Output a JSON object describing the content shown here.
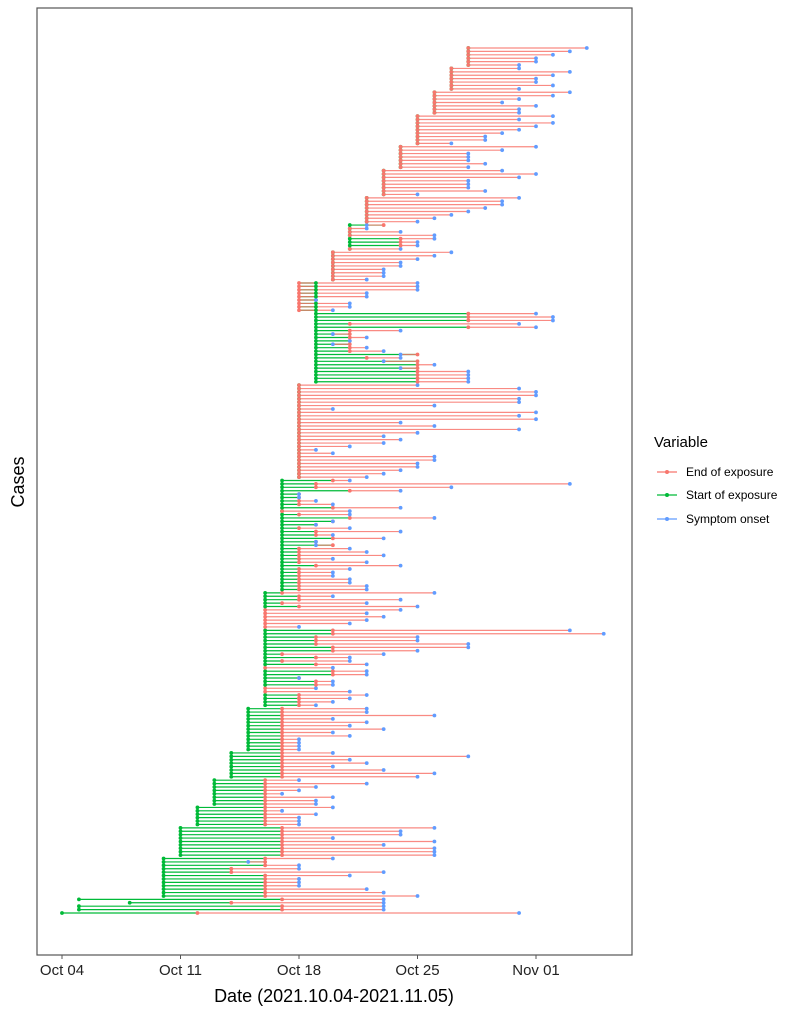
{
  "chart_data": {
    "type": "line",
    "subtype": "segment-timeline",
    "title": "",
    "xlabel": "Date (2021.10.04-2021.11.05)",
    "ylabel": "Cases",
    "x_origin_date": "2021-10-04",
    "x_unit": "days since Oct 04",
    "xlim": [
      -1.4,
      33.8
    ],
    "x_ticks": [
      {
        "value": 0,
        "label": "Oct 04"
      },
      {
        "value": 7,
        "label": "Oct 11"
      },
      {
        "value": 14,
        "label": "Oct 18"
      },
      {
        "value": 21,
        "label": "Oct 25"
      },
      {
        "value": 28,
        "label": "Nov 01"
      }
    ],
    "grid": false,
    "legend": {
      "title": "Variable",
      "position": "right",
      "entries": [
        {
          "key": "end",
          "label": "End of exposure",
          "color": "#F8766D"
        },
        {
          "key": "start",
          "label": "Start of exposure",
          "color": "#00BA38"
        },
        {
          "key": "onset",
          "label": "Symptom onset",
          "color": "#619CFF"
        }
      ]
    },
    "case_format": "[start_of_exposure_day, end_of_exposure_day, symptom_onset_day] (null = no start recorded), ordered bottom to top",
    "cases": [
      [
        0,
        8,
        27
      ],
      [
        1,
        13,
        19
      ],
      [
        1,
        13,
        19
      ],
      [
        4,
        10,
        19
      ],
      [
        1,
        13,
        19
      ],
      [
        6,
        12,
        21
      ],
      [
        6,
        12,
        19
      ],
      [
        6,
        12,
        18
      ],
      [
        6,
        12,
        14
      ],
      [
        6,
        12,
        14
      ],
      [
        6,
        12,
        14
      ],
      [
        6,
        12,
        17
      ],
      [
        6,
        10,
        19
      ],
      [
        6,
        10,
        14
      ],
      [
        6,
        12,
        14
      ],
      [
        6,
        12,
        11
      ],
      [
        6,
        12,
        16
      ],
      [
        7,
        13,
        22
      ],
      [
        7,
        13,
        22
      ],
      [
        7,
        13,
        22
      ],
      [
        7,
        13,
        19
      ],
      [
        7,
        13,
        22
      ],
      [
        7,
        13,
        16
      ],
      [
        7,
        13,
        20
      ],
      [
        7,
        13,
        20
      ],
      [
        7,
        13,
        22
      ],
      [
        8,
        12,
        14
      ],
      [
        8,
        12,
        14
      ],
      [
        8,
        12,
        14
      ],
      [
        8,
        12,
        15
      ],
      [
        8,
        12,
        13
      ],
      [
        8,
        12,
        16
      ],
      [
        9,
        12,
        15
      ],
      [
        9,
        12,
        15
      ],
      [
        9,
        12,
        16
      ],
      [
        9,
        12,
        13
      ],
      [
        9,
        12,
        14
      ],
      [
        9,
        12,
        15
      ],
      [
        9,
        12,
        18
      ],
      [
        9,
        12,
        14
      ],
      [
        10,
        13,
        21
      ],
      [
        10,
        13,
        22
      ],
      [
        10,
        13,
        19
      ],
      [
        10,
        13,
        16
      ],
      [
        10,
        13,
        18
      ],
      [
        10,
        13,
        17
      ],
      [
        10,
        13,
        24
      ],
      [
        10,
        13,
        16
      ],
      [
        11,
        13,
        14
      ],
      [
        11,
        13,
        14
      ],
      [
        11,
        13,
        14
      ],
      [
        11,
        13,
        14
      ],
      [
        11,
        13,
        17
      ],
      [
        11,
        13,
        16
      ],
      [
        11,
        13,
        19
      ],
      [
        11,
        13,
        17
      ],
      [
        11,
        13,
        18
      ],
      [
        11,
        13,
        16
      ],
      [
        11,
        13,
        22
      ],
      [
        11,
        13,
        18
      ],
      [
        11,
        13,
        18
      ],
      [
        12,
        14,
        15
      ],
      [
        12,
        14,
        16
      ],
      [
        12,
        14,
        17
      ],
      [
        12,
        14,
        18
      ],
      [
        null,
        12,
        17
      ],
      [
        null,
        12,
        15
      ],
      [
        12,
        15,
        16
      ],
      [
        12,
        15,
        16
      ],
      [
        12,
        14,
        14
      ],
      [
        12,
        16,
        18
      ],
      [
        12,
        16,
        18
      ],
      [
        null,
        12,
        16
      ],
      [
        12,
        15,
        18
      ],
      [
        12,
        13,
        17
      ],
      [
        12,
        15,
        17
      ],
      [
        12,
        13,
        19
      ],
      [
        12,
        16,
        21
      ],
      [
        12,
        16,
        24
      ],
      [
        12,
        15,
        24
      ],
      [
        12,
        15,
        21
      ],
      [
        12,
        15,
        21
      ],
      [
        12,
        16,
        32
      ],
      [
        12,
        16,
        30
      ],
      [
        null,
        12,
        14
      ],
      [
        null,
        12,
        17
      ],
      [
        null,
        12,
        18
      ],
      [
        null,
        12,
        19
      ],
      [
        null,
        12,
        18
      ],
      [
        null,
        12,
        20
      ],
      [
        12,
        14,
        21
      ],
      [
        12,
        13,
        18
      ],
      [
        12,
        14,
        20
      ],
      [
        12,
        14,
        16
      ],
      [
        12,
        13,
        22
      ],
      [
        13,
        14,
        18
      ],
      [
        13,
        14,
        18
      ],
      [
        13,
        14,
        17
      ],
      [
        13,
        14,
        17
      ],
      [
        13,
        14,
        16
      ],
      [
        13,
        14,
        16
      ],
      [
        13,
        14,
        17
      ],
      [
        13,
        15,
        20
      ],
      [
        13,
        14,
        18
      ],
      [
        13,
        14,
        16
      ],
      [
        13,
        14,
        19
      ],
      [
        13,
        14,
        18
      ],
      [
        13,
        14,
        17
      ],
      [
        13,
        16,
        15
      ],
      [
        13,
        15,
        15
      ],
      [
        13,
        16,
        19
      ],
      [
        13,
        15,
        16
      ],
      [
        13,
        15,
        20
      ],
      [
        13,
        14,
        17
      ],
      [
        13,
        15,
        15
      ],
      [
        13,
        16,
        16
      ],
      [
        13,
        17,
        22
      ],
      [
        13,
        14,
        17
      ],
      [
        13,
        13,
        17
      ],
      [
        13,
        16,
        20
      ],
      [
        13,
        14,
        16
      ],
      [
        13,
        14,
        15
      ],
      [
        13,
        14,
        14
      ],
      [
        13,
        14,
        14
      ],
      [
        13,
        17,
        20
      ],
      [
        13,
        15,
        23
      ],
      [
        13,
        15,
        30
      ],
      [
        13,
        16,
        17
      ],
      [
        14,
        14,
        18
      ],
      [
        14,
        14,
        19
      ],
      [
        14,
        14,
        20
      ],
      [
        14,
        14,
        21
      ],
      [
        14,
        14,
        21
      ],
      [
        14,
        14,
        22
      ],
      [
        14,
        14,
        22
      ],
      [
        14,
        14,
        16
      ],
      [
        14,
        14,
        15
      ],
      [
        14,
        14,
        17
      ],
      [
        14,
        14,
        19
      ],
      [
        14,
        14,
        20
      ],
      [
        14,
        14,
        19
      ],
      [
        14,
        14,
        21
      ],
      [
        14,
        14,
        27
      ],
      [
        14,
        14,
        22
      ],
      [
        14,
        14,
        20
      ],
      [
        14,
        14,
        28
      ],
      [
        14,
        14,
        27
      ],
      [
        14,
        14,
        28
      ],
      [
        14,
        14,
        16
      ],
      [
        14,
        14,
        22
      ],
      [
        14,
        14,
        27
      ],
      [
        14,
        14,
        27
      ],
      [
        14,
        14,
        28
      ],
      [
        14,
        14,
        28
      ],
      [
        14,
        14,
        27
      ],
      [
        14,
        14,
        21
      ],
      [
        15,
        21,
        24
      ],
      [
        15,
        21,
        24
      ],
      [
        15,
        21,
        24
      ],
      [
        15,
        21,
        24
      ],
      [
        15,
        21,
        20
      ],
      [
        15,
        21,
        22
      ],
      [
        15,
        21,
        19
      ],
      [
        15,
        18,
        20
      ],
      [
        15,
        21,
        20
      ],
      [
        15,
        17,
        19
      ],
      [
        15,
        17,
        18
      ],
      [
        15,
        17,
        16
      ],
      [
        15,
        17,
        17
      ],
      [
        15,
        17,
        18
      ],
      [
        15,
        17,
        16
      ],
      [
        15,
        17,
        20
      ],
      [
        15,
        24,
        28
      ],
      [
        15,
        17,
        27
      ],
      [
        15,
        24,
        29
      ],
      [
        15,
        24,
        29
      ],
      [
        15,
        24,
        28
      ],
      [
        15,
        14,
        16
      ],
      [
        15,
        14,
        17
      ],
      [
        15,
        14,
        17
      ],
      [
        15,
        14,
        15
      ],
      [
        15,
        14,
        18
      ],
      [
        15,
        14,
        18
      ],
      [
        15,
        14,
        21
      ],
      [
        15,
        14,
        21
      ],
      [
        15,
        14,
        21
      ],
      [
        16,
        16,
        18
      ],
      [
        16,
        16,
        19
      ],
      [
        16,
        16,
        19
      ],
      [
        16,
        16,
        19
      ],
      [
        16,
        16,
        20
      ],
      [
        16,
        16,
        20
      ],
      [
        16,
        16,
        21
      ],
      [
        16,
        16,
        22
      ],
      [
        16,
        16,
        23
      ],
      [
        17,
        17,
        20
      ],
      [
        17,
        20,
        21
      ],
      [
        17,
        20,
        21
      ],
      [
        17,
        20,
        22
      ],
      [
        17,
        17,
        22
      ],
      [
        17,
        17,
        20
      ],
      [
        17,
        17,
        18
      ],
      [
        17,
        19,
        18
      ],
      [
        18,
        18,
        21
      ],
      [
        18,
        18,
        22
      ],
      [
        18,
        18,
        23
      ],
      [
        18,
        18,
        24
      ],
      [
        18,
        18,
        25
      ],
      [
        18,
        18,
        26
      ],
      [
        18,
        18,
        26
      ],
      [
        18,
        18,
        27
      ],
      [
        19,
        19,
        21
      ],
      [
        19,
        19,
        25
      ],
      [
        19,
        19,
        24
      ],
      [
        19,
        19,
        24
      ],
      [
        19,
        19,
        24
      ],
      [
        19,
        19,
        27
      ],
      [
        19,
        19,
        28
      ],
      [
        19,
        19,
        26
      ],
      [
        20,
        20,
        24
      ],
      [
        20,
        20,
        25
      ],
      [
        20,
        20,
        24
      ],
      [
        20,
        20,
        24
      ],
      [
        20,
        20,
        24
      ],
      [
        20,
        20,
        26
      ],
      [
        20,
        20,
        28
      ],
      [
        21,
        21,
        23
      ],
      [
        21,
        21,
        25
      ],
      [
        21,
        21,
        25
      ],
      [
        21,
        21,
        26
      ],
      [
        21,
        21,
        27
      ],
      [
        21,
        21,
        28
      ],
      [
        21,
        21,
        29
      ],
      [
        21,
        21,
        27
      ],
      [
        21,
        21,
        29
      ],
      [
        22,
        22,
        27
      ],
      [
        22,
        22,
        27
      ],
      [
        22,
        22,
        28
      ],
      [
        22,
        22,
        26
      ],
      [
        22,
        22,
        27
      ],
      [
        22,
        22,
        29
      ],
      [
        22,
        22,
        30
      ],
      [
        23,
        23,
        27
      ],
      [
        23,
        23,
        29
      ],
      [
        23,
        23,
        28
      ],
      [
        23,
        23,
        28
      ],
      [
        23,
        23,
        29
      ],
      [
        23,
        23,
        30
      ],
      [
        23,
        23,
        27
      ],
      [
        24,
        24,
        27
      ],
      [
        24,
        24,
        28
      ],
      [
        24,
        24,
        28
      ],
      [
        24,
        24,
        29
      ],
      [
        24,
        24,
        30
      ],
      [
        24,
        24,
        31
      ]
    ]
  },
  "axes": {
    "x_title": "Date (2021.10.04-2021.11.05)",
    "y_title": "Cases"
  },
  "legend": {
    "title": "Variable",
    "items": [
      {
        "label": "End of exposure",
        "color": "#F8766D"
      },
      {
        "label": "Start of exposure",
        "color": "#00BA38"
      },
      {
        "label": "Symptom onset",
        "color": "#619CFF"
      }
    ]
  }
}
